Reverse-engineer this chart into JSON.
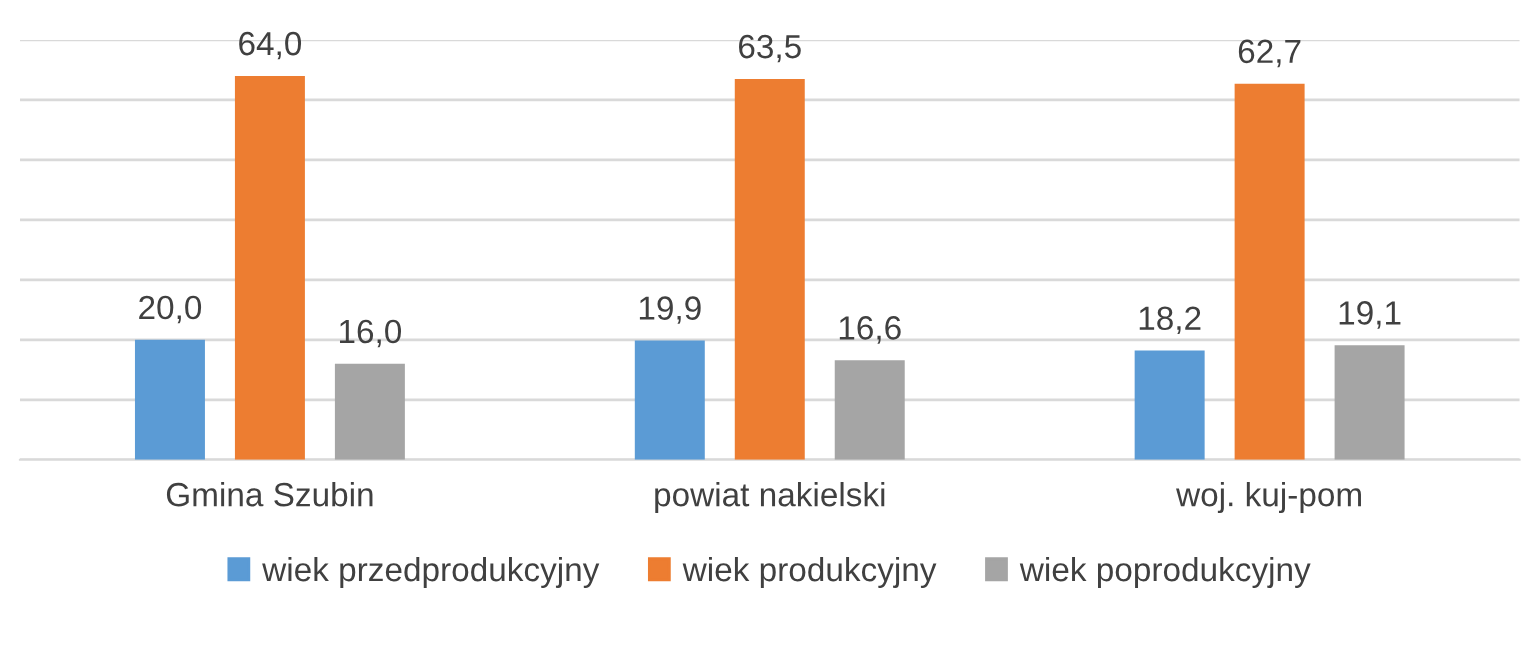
{
  "chart_data": {
    "type": "bar",
    "categories": [
      "Gmina Szubin",
      "powiat nakielski",
      "woj. kuj-pom"
    ],
    "series": [
      {
        "name": "wiek przedprodukcyjny",
        "color": "#5b9bd5",
        "values": [
          20.0,
          19.9,
          18.2
        ],
        "value_labels": [
          "20,0",
          "19,9",
          "18,2"
        ]
      },
      {
        "name": "wiek produkcyjny",
        "color": "#ed7d31",
        "values": [
          64.0,
          63.5,
          62.7
        ],
        "value_labels": [
          "64,0",
          "63,5",
          "62,7"
        ]
      },
      {
        "name": "wiek poprodukcyjny",
        "color": "#a5a5a5",
        "values": [
          16.0,
          16.6,
          19.1
        ],
        "value_labels": [
          "16,0",
          "16,6",
          "19,1"
        ]
      }
    ],
    "ylim": [
      0,
      70
    ],
    "yticks": [
      {
        "value": 0,
        "label": null
      },
      {
        "value": 10,
        "label": null
      },
      {
        "value": 20,
        "label": null
      },
      {
        "value": 30,
        "label": null
      },
      {
        "value": 40,
        "label": null
      },
      {
        "value": 50,
        "label": null
      },
      {
        "value": 60,
        "label": null
      },
      {
        "value": 70,
        "label": null
      }
    ],
    "tick_labels": "x",
    "grid": "y",
    "legend": "bottom"
  }
}
